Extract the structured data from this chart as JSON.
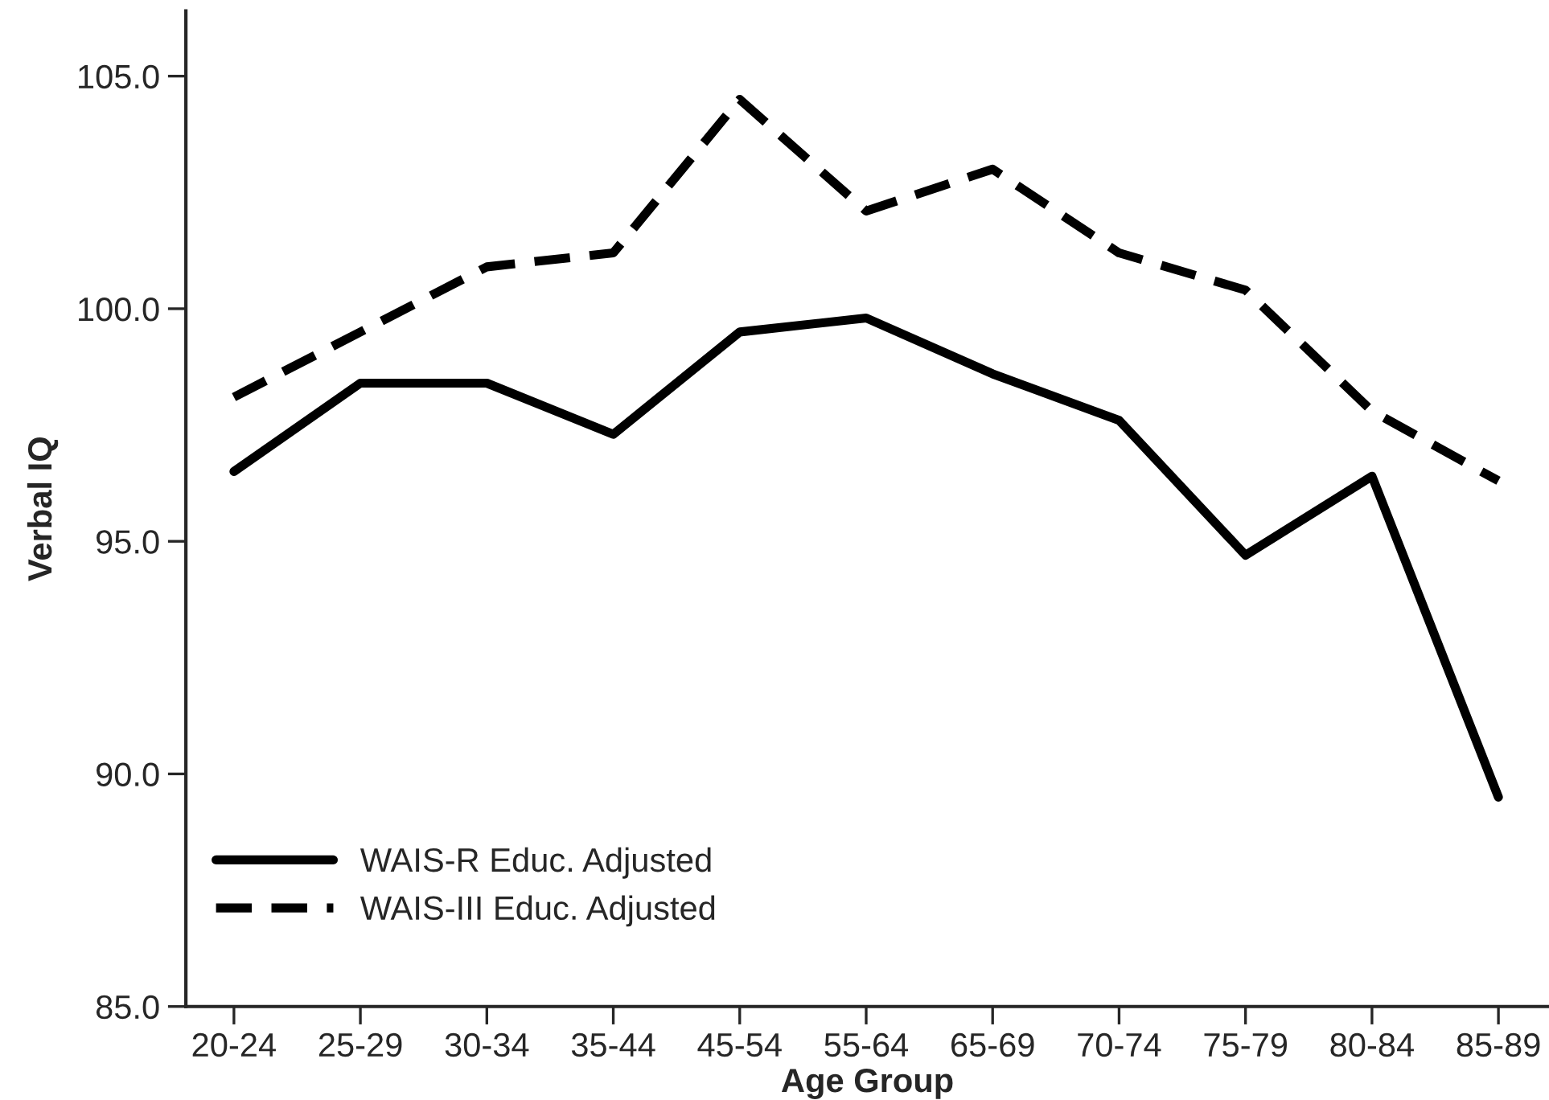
{
  "chart_data": {
    "type": "line",
    "xlabel": "Age Group",
    "ylabel": "Verbal IQ",
    "categories": [
      "20-24",
      "25-29",
      "30-34",
      "35-44",
      "45-54",
      "55-64",
      "65-69",
      "70-74",
      "75-79",
      "80-84",
      "85-89"
    ],
    "series": [
      {
        "name": "WAIS-R Educ. Adjusted",
        "color": "#000000",
        "line_style": "solid",
        "values": [
          96.5,
          98.4,
          98.4,
          97.3,
          99.5,
          99.8,
          98.6,
          97.6,
          94.7,
          96.4,
          89.5
        ]
      },
      {
        "name": "WAIS-III Educ. Adjusted",
        "color": "#000000",
        "line_style": "dashed",
        "values": [
          98.1,
          99.5,
          100.9,
          101.2,
          104.5,
          102.1,
          103.0,
          101.2,
          100.4,
          97.8,
          96.3
        ]
      }
    ],
    "ylim": [
      85,
      106.4
    ],
    "yticks": [
      {
        "value": 85,
        "label": "85.0"
      },
      {
        "value": 90,
        "label": "90.0"
      },
      {
        "value": 95,
        "label": "95.0"
      },
      {
        "value": 100,
        "label": "100.0"
      },
      {
        "value": 105,
        "label": "105.0"
      }
    ],
    "grid": false,
    "legend": "bottom left",
    "marker": "none"
  }
}
